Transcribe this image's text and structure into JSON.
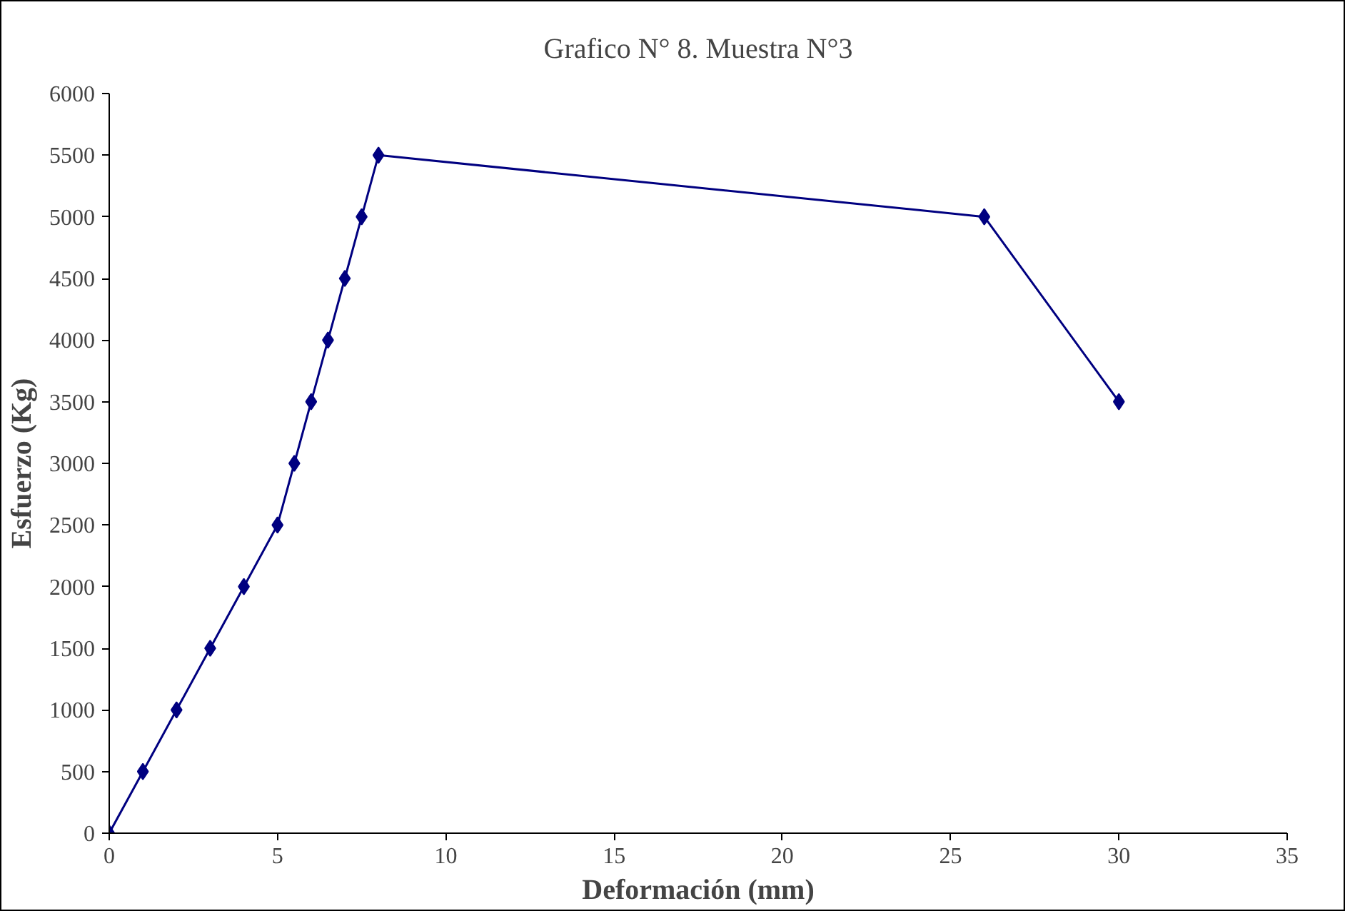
{
  "chart_data": {
    "type": "line",
    "title": "Grafico N° 8. Muestra N°3",
    "xlabel": "Deformación (mm)",
    "ylabel": "Esfuerzo (Kg)",
    "x": [
      0,
      1,
      2,
      3,
      4,
      5,
      5.5,
      6,
      6.5,
      7,
      7.5,
      8,
      26,
      30
    ],
    "series": [
      {
        "color": "#000080",
        "values": [
          0,
          500,
          1000,
          1500,
          2000,
          2500,
          3000,
          3500,
          4000,
          4500,
          5000,
          5500,
          5000,
          3500
        ]
      }
    ],
    "xlim": [
      0,
      35
    ],
    "xticks": [
      0,
      5,
      10,
      15,
      20,
      25,
      30,
      35
    ],
    "ylim": [
      0,
      6000
    ],
    "yticks": [
      0,
      500,
      1000,
      1500,
      2000,
      2500,
      3000,
      3500,
      4000,
      4500,
      5000,
      5500,
      6000
    ],
    "grid": false,
    "marker": "diamond",
    "line_style": "solid"
  }
}
